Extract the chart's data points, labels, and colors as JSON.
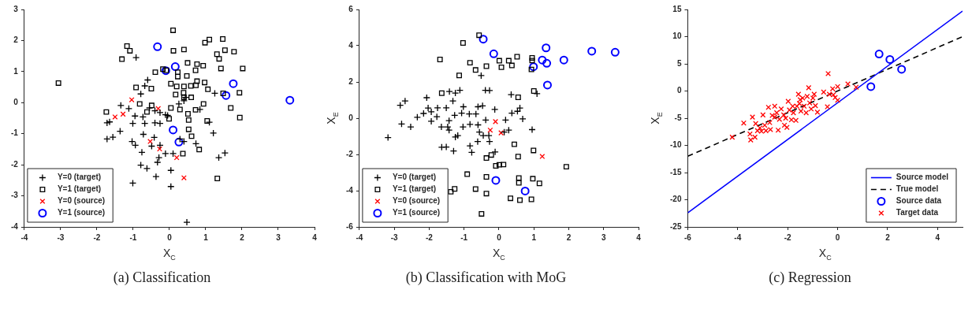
{
  "chart_data": [
    {
      "type": "scatter",
      "title": "(a) Classification",
      "xlabel": "X$_{C}$",
      "xlim": [
        -4,
        4
      ],
      "xticks": [
        -4,
        -3,
        -2,
        -1,
        0,
        1,
        2,
        3,
        4
      ],
      "ylim": [
        -4,
        3
      ],
      "yticks": [
        -4,
        -3,
        -2,
        -1,
        0,
        1,
        2,
        3
      ],
      "grid": false,
      "legend": "bottom left",
      "series": [
        {
          "name": "Y=0 (target)",
          "color": "#000000",
          "marker": "plus",
          "x": [
            -0.92,
            -0.6,
            -0.68,
            -0.79,
            -1.34,
            -1.12,
            -0.95,
            -0.73,
            -1.72,
            -1.65,
            -1.01,
            -0.68,
            -0.4,
            -0.26,
            -0.55,
            -0.4,
            -0.26,
            -0.11,
            -0.05,
            0.26,
            0.4,
            0.84,
            -1.36,
            -1.72,
            -1.56,
            -0.72,
            -0.42,
            -1.03,
            -0.94,
            -0.49,
            -0.26,
            -0.76,
            -0.29,
            -0.33,
            -0.11,
            0.1,
            -0.79,
            -0.62,
            -0.37,
            0.04,
            -1.01,
            0.04,
            0.48,
            0.4,
            0.73,
            1.1,
            1.21,
            1.25,
            1.36,
            1.53,
            0.44,
            0.29
          ],
          "values": [
            1.45,
            0.73,
            0.54,
            0.28,
            -0.09,
            -0.19,
            -0.43,
            -0.46,
            -0.65,
            -0.62,
            -0.67,
            -0.67,
            -0.65,
            -0.67,
            -0.17,
            -0.26,
            -0.32,
            -0.39,
            -0.41,
            -0.04,
            0.06,
            -0.22,
            -0.92,
            -1.17,
            -1.11,
            -1.02,
            -1.12,
            -1.25,
            -1.37,
            -1.4,
            -1.37,
            -1.6,
            -1.77,
            -1.92,
            -1.64,
            -1.64,
            -2.01,
            -2.12,
            -2.38,
            -2.18,
            -2.59,
            -2.7,
            -3.85,
            -1.25,
            -1.32,
            -0.63,
            -0.98,
            0.3,
            -1.77,
            -1.62,
            0.17,
            -1.17
          ]
        },
        {
          "name": "Y=1 (target)",
          "color": "#000000",
          "marker": "square",
          "x": [
            0.1,
            -1.17,
            -1.09,
            -1.31,
            0.11,
            0.4,
            0.98,
            1.1,
            1.47,
            1.53,
            1.78,
            1.31,
            1.37,
            0.5,
            0.76,
            0.93,
            0.72,
            1.42,
            2.02,
            -3.06,
            -0.92,
            -0.5,
            -0.39,
            -0.18,
            -0.09,
            0.23,
            0.23,
            0.48,
            0.04,
            0.2,
            0.4,
            0.59,
            0.73,
            0.76,
            0.97,
            1.06,
            0.17,
            0.39,
            0.6,
            0.4,
            1.48,
            1.93,
            1.69,
            1.94,
            0.94,
            0.72,
            0.29,
            0.04,
            -0.01,
            -0.49,
            -0.82,
            -1.74,
            -0.62,
            0.51,
            0.53,
            1.04,
            0.53,
            0.61,
            0.82,
            0.37,
            1.32
          ],
          "values": [
            2.33,
            1.82,
            1.67,
            1.4,
            1.67,
            1.71,
            1.93,
            2.03,
            2.05,
            1.69,
            1.64,
            1.56,
            1.41,
            1.28,
            1.24,
            1.19,
            1.04,
            1.1,
            1.1,
            0.63,
            0.49,
            0.45,
            0.98,
            1.08,
            1.04,
            0.98,
            0.84,
            0.86,
            0.61,
            0.52,
            0.52,
            0.54,
            0.56,
            0.69,
            0.65,
            0.43,
            0.26,
            0.32,
            0.17,
            0.17,
            0.3,
            0.32,
            -0.17,
            -0.48,
            -0.04,
            -0.23,
            -0.22,
            -0.17,
            -0.52,
            -0.09,
            -0.04,
            -0.3,
            -0.3,
            -0.36,
            -0.56,
            -0.59,
            -0.86,
            -1.08,
            -1.51,
            -1.64,
            -2.44
          ]
        },
        {
          "name": "Y=0 (source)",
          "color": "#ff0000",
          "marker": "cross",
          "x": [
            -1.04,
            -1.5,
            -1.28,
            -0.31,
            -0.53,
            -0.27,
            0.2,
            0.4
          ],
          "values": [
            0.09,
            -0.46,
            -0.37,
            -0.19,
            -1.25,
            -1.49,
            -1.77,
            -2.42
          ]
        },
        {
          "name": "Y=1 (source)",
          "color": "#0000ff",
          "marker": "circle",
          "x": [
            -0.33,
            -0.1,
            0.16,
            0.1,
            0.26,
            1.56,
            1.76,
            3.32
          ],
          "values": [
            1.8,
            1.03,
            1.16,
            -0.88,
            -1.27,
            0.23,
            0.61,
            0.08
          ]
        }
      ]
    },
    {
      "type": "scatter",
      "title": "(b) Classification with MoG",
      "xlabel": "X$_{C}$",
      "ylabel": "X$_{E}$",
      "xlim": [
        -4,
        4
      ],
      "xticks": [
        -4,
        -3,
        -2,
        -1,
        0,
        1,
        2,
        3,
        4
      ],
      "ylim": [
        -6,
        6
      ],
      "yticks": [
        -6,
        -4,
        -2,
        0,
        2,
        4,
        6
      ],
      "grid": false,
      "legend": "bottom left",
      "series": [
        {
          "name": "Y=0 (target)",
          "color": "#000000",
          "marker": "plus",
          "x": [
            -3.18,
            -2.83,
            -2.69,
            -2.79,
            -2.53,
            -2.34,
            -2.16,
            -2.07,
            -2.03,
            -1.94,
            -1.94,
            -1.76,
            -1.78,
            -1.51,
            -1.42,
            -1.25,
            -1.12,
            -1.32,
            -1.43,
            -1.47,
            -1.27,
            -1.02,
            -1.07,
            -0.85,
            -0.66,
            -0.6,
            -0.47,
            -0.39,
            -0.27,
            -0.51,
            -0.38,
            -0.12,
            0.19,
            0.35,
            0.37,
            0.6,
            0.68,
            0.95,
            1.09,
            -0.83,
            -0.6,
            -0.56,
            -0.45,
            -0.27,
            -0.11,
            -0.29,
            -0.61,
            -0.83,
            -0.78,
            -1.25,
            -1.51,
            -1.64,
            -1.3,
            0.28,
            -1.03,
            0.15,
            0.53,
            -1.65,
            -1.18,
            -1.43
          ],
          "values": [
            -1.07,
            0.71,
            0.95,
            -0.32,
            -0.48,
            0.05,
            0.26,
            1.13,
            0.56,
            0.35,
            -0.17,
            0.57,
            0.08,
            0.57,
            1.47,
            1.39,
            1.54,
            0.95,
            -0.14,
            -0.48,
            0.16,
            0.63,
            0.28,
            0.23,
            0.23,
            0.63,
            0.68,
            1.54,
            1.53,
            2.35,
            -0.1,
            0.48,
            -0.1,
            1.3,
            0.28,
            0.56,
            -0.04,
            -0.63,
            1.35,
            -0.34,
            -0.37,
            -0.77,
            -0.96,
            -1.29,
            -1.86,
            -0.96,
            -1.29,
            -1.53,
            -1.89,
            -1.04,
            -1.59,
            -1.6,
            -1.81,
            -0.66,
            -0.48,
            -0.77,
            0.38,
            -0.48,
            -0.96,
            -0.66
          ]
        },
        {
          "name": "Y=1 (target)",
          "color": "#000000",
          "marker": "square",
          "x": [
            -0.57,
            -1.03,
            -1.69,
            -0.83,
            -0.67,
            -0.36,
            0.01,
            0.07,
            0.28,
            0.37,
            0.52,
            0.95,
            0.95,
            0.93,
            -1.14,
            -1.64,
            1.0,
            0.55,
            0.44,
            0.99,
            0.55,
            -0.36,
            -0.22,
            -0.09,
            0.01,
            0.13,
            -0.91,
            -0.36,
            0.57,
            0.57,
            0.97,
            1.16,
            1.93,
            -1.27,
            -1.38,
            -0.67,
            -0.36,
            0.33,
            0.6,
            0.93,
            -0.5
          ],
          "values": [
            4.58,
            4.15,
            3.24,
            3.06,
            2.66,
            2.87,
            3.17,
            2.81,
            3.17,
            2.91,
            3.39,
            3.33,
            3.18,
            2.69,
            2.36,
            1.38,
            1.5,
            1.15,
            -1.44,
            -1.78,
            -2.12,
            -2.2,
            -2.03,
            -2.63,
            -2.57,
            -2.56,
            -3.09,
            -3.24,
            -3.3,
            -3.57,
            -3.34,
            -3.6,
            -2.68,
            -3.9,
            -4.06,
            -3.91,
            -4.16,
            -4.42,
            -4.52,
            -4.48,
            -5.28
          ]
        },
        {
          "name": "Y=0 (source)",
          "color": "#ff0000",
          "marker": "cross",
          "x": [
            -0.1,
            -0.25,
            0.06,
            1.24
          ],
          "values": [
            -0.19,
            -0.66,
            -0.81,
            -2.11
          ]
        },
        {
          "name": "Y=1 (source)",
          "color": "#0000ff",
          "marker": "circle",
          "x": [
            -0.45,
            -0.15,
            1.35,
            1.24,
            1.37,
            1.86,
            2.66,
            3.33,
            0.99,
            1.39,
            -0.09,
            0.75
          ],
          "values": [
            4.36,
            3.55,
            3.88,
            3.21,
            3.03,
            3.21,
            3.7,
            3.64,
            2.84,
            1.83,
            -3.43,
            -4.02
          ]
        }
      ]
    },
    {
      "type": "scatter",
      "title": "(c) Regression",
      "xlabel": "X$_{C}$",
      "ylabel": "X$_{E}$",
      "xlim": [
        -6,
        5
      ],
      "xticks": [
        -6,
        -4,
        -2,
        0,
        2,
        4
      ],
      "ylim": [
        -25,
        15
      ],
      "yticks": [
        -25,
        -20,
        -15,
        -10,
        -5,
        0,
        5,
        10,
        15
      ],
      "grid": false,
      "legend": "bottom right",
      "series": [
        {
          "name": "Source model",
          "type": "line",
          "color": "#0000ff",
          "line_style": "solid",
          "marker": "none",
          "x": [
            -6,
            5
          ],
          "values": [
            -22.4,
            14.7
          ]
        },
        {
          "name": "True model",
          "type": "line",
          "color": "#000000",
          "line_style": "dashed",
          "marker": "none",
          "x": [
            -6,
            5
          ],
          "values": [
            -12,
            10
          ]
        },
        {
          "name": "Source data",
          "color": "#0000ff",
          "marker": "circle",
          "x": [
            1.33,
            1.66,
            2.09,
            2.56
          ],
          "values": [
            0.8,
            6.8,
            5.8,
            4.0
          ]
        },
        {
          "name": "Target data",
          "color": "#ff0000",
          "marker": "cross",
          "x": [
            -4.22,
            -3.76,
            -3.51,
            -3.48,
            -3.41,
            -3.31,
            -3.28,
            -3.21,
            -3.11,
            -3.05,
            -2.99,
            -2.92,
            -2.87,
            -2.77,
            -2.72,
            -2.69,
            -2.62,
            -2.52,
            -2.52,
            -2.44,
            -2.38,
            -2.33,
            -2.26,
            -2.16,
            -2.08,
            -2.03,
            -1.98,
            -1.93,
            -1.85,
            -1.77,
            -1.67,
            -1.63,
            -1.57,
            -1.53,
            -1.47,
            -1.4,
            -1.34,
            -1.26,
            -1.22,
            -1.16,
            -1.12,
            -1.06,
            -0.99,
            -0.94,
            -0.89,
            -0.81,
            -0.56,
            -0.41,
            -0.38,
            -0.33,
            -0.2,
            -0.1,
            0.0,
            0.0,
            0.41,
            0.74,
            -0.17,
            -1.5,
            -1.8,
            -2.13
          ],
          "values": [
            -8.5,
            -5.9,
            -7.9,
            -9.0,
            -4.8,
            -8.5,
            -6.0,
            -7.3,
            -6.8,
            -7.4,
            -4.4,
            -6.3,
            -7.3,
            -3.0,
            -5.8,
            -7.1,
            -4.5,
            -2.8,
            -4.8,
            -4.0,
            -7.2,
            -5.2,
            -3.3,
            -4.4,
            -5.0,
            -6.7,
            -1.9,
            -3.5,
            -5.3,
            -4.0,
            -5.4,
            -2.8,
            -0.6,
            -2.3,
            -3.7,
            -1.3,
            -2.8,
            -4.0,
            -1.0,
            0.6,
            -2.2,
            -3.3,
            -1.3,
            -0.6,
            -2.7,
            -3.9,
            -0.2,
            -2.9,
            3.2,
            -0.6,
            0.4,
            -1.2,
            -1.7,
            0.8,
            1.3,
            0.7,
            -0.7,
            -1.6,
            -2.8,
            -6.3
          ]
        }
      ]
    }
  ]
}
